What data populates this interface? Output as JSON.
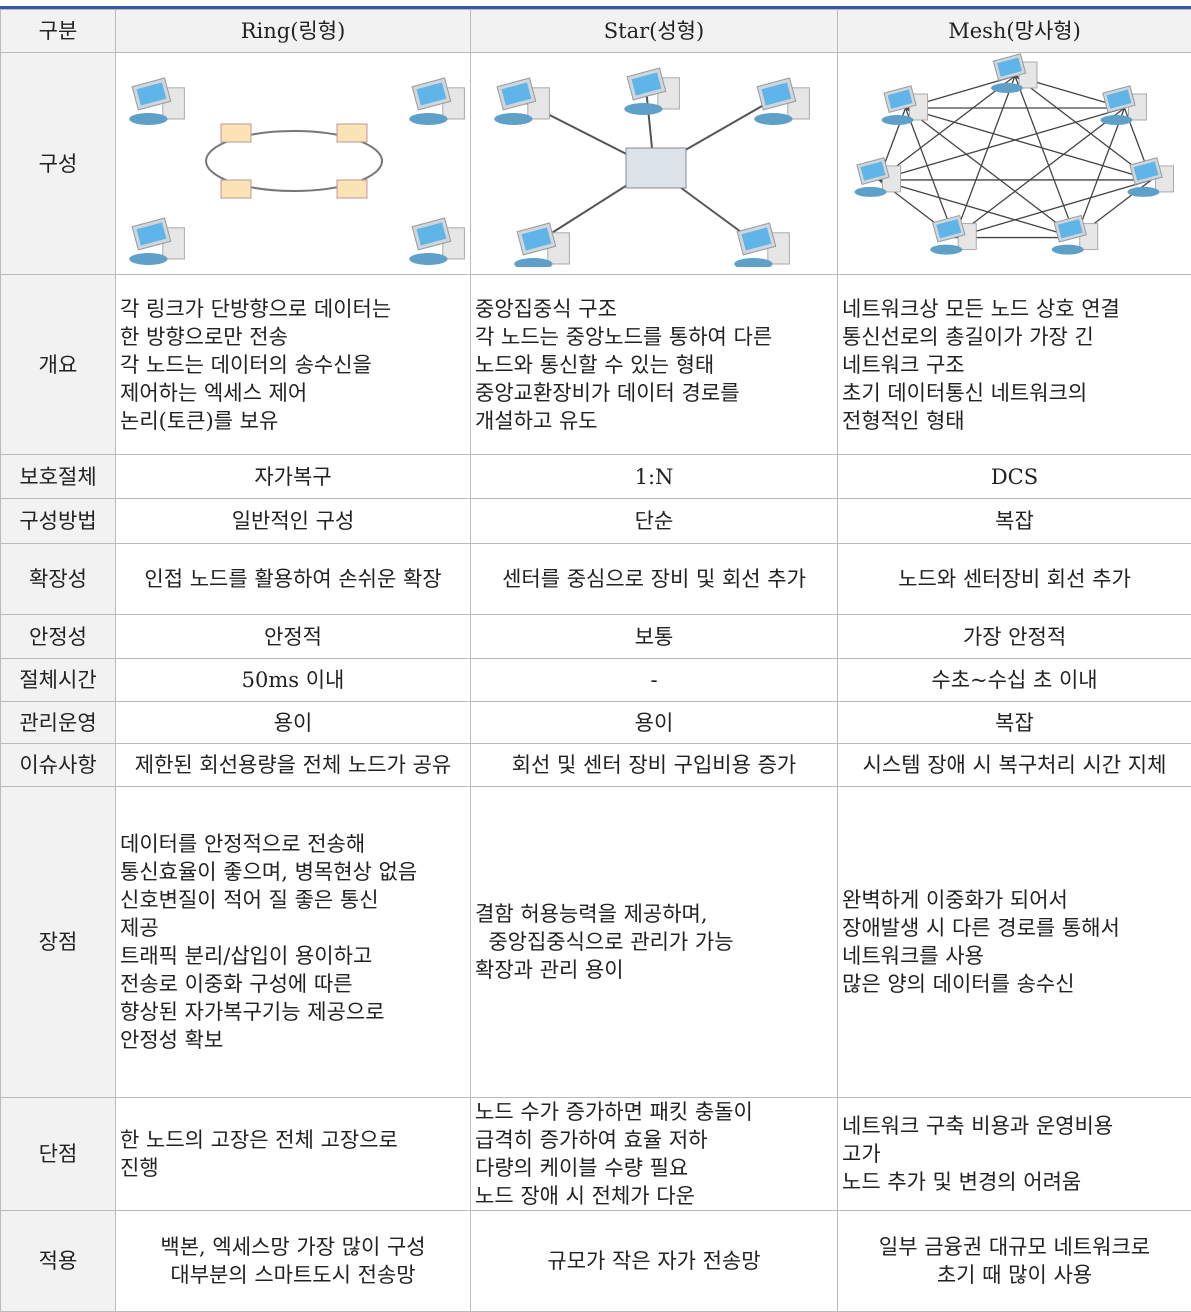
{
  "table": {
    "header": [
      "구분",
      "Ring(링형)",
      "Star(성형)",
      "Mesh(망사형)"
    ],
    "rows": [
      {
        "label": "구성"
      },
      {
        "label": "개요",
        "cells": [
          [
            "각 링크가 단방향으로 데이터는",
            "한 방향으로만 전송",
            "각 노드는 데이터의 송수신을",
            "제어하는 엑세스 제어",
            "논리(토큰)를 보유"
          ],
          [
            "중앙집중식 구조",
            "각 노드는 중앙노드를 통하여 다른",
            "노드와 통신할 수 있는 형태",
            "중앙교환장비가 데이터 경로를",
            "개설하고 유도"
          ],
          [
            "네트워크상 모든 노드 상호 연결",
            "통신선로의 총길이가 가장 긴",
            "네트워크 구조",
            "초기 데이터통신 네트워크의",
            "전형적인 형태"
          ]
        ]
      },
      {
        "label": "보호절체",
        "cells": [
          [
            "자가복구"
          ],
          [
            "1:N"
          ],
          [
            "DCS"
          ]
        ]
      },
      {
        "label": "구성방법",
        "cells": [
          [
            "일반적인 구성"
          ],
          [
            "단순"
          ],
          [
            "복잡"
          ]
        ]
      },
      {
        "label": "확장성",
        "cells": [
          [
            "인접 노드를 활용하여 손쉬운 확장"
          ],
          [
            "센터를 중심으로 장비 및 회선 추가"
          ],
          [
            "노드와 센터장비 회선 추가"
          ]
        ]
      },
      {
        "label": "안정성",
        "cells": [
          [
            "안정적"
          ],
          [
            "보통"
          ],
          [
            "가장 안정적"
          ]
        ]
      },
      {
        "label": "절체시간",
        "cells": [
          [
            "50ms 이내"
          ],
          [
            "-"
          ],
          [
            "수초~수십 초 이내"
          ]
        ]
      },
      {
        "label": "관리운영",
        "cells": [
          [
            "용이"
          ],
          [
            "용이"
          ],
          [
            "복잡"
          ]
        ]
      },
      {
        "label": "이슈사항",
        "cells": [
          [
            "제한된 회선용량을 전체 노드가 공유"
          ],
          [
            "회선 및 센터 장비 구입비용 증가"
          ],
          [
            "시스템 장애 시 복구처리 시간 지체"
          ]
        ]
      },
      {
        "label": "장점",
        "cells": [
          [
            "데이터를 안정적으로 전송해",
            "통신효율이 좋으며, 병목현상 없음",
            "신호변질이 적어 질 좋은 통신",
            "제공",
            "트래픽 분리/삽입이 용이하고",
            "전송로 이중화 구성에 따른",
            "향상된 자가복구기능 제공으로",
            "안정성 확보"
          ],
          [
            "결함 허용능력을 제공하며,",
            "  중앙집중식으로 관리가 가능",
            "확장과 관리 용이"
          ],
          [
            "완벽하게 이중화가 되어서",
            "장애발생 시 다른 경로를 통해서",
            "네트워크를 사용",
            "많은 양의 데이터를 송수신"
          ]
        ]
      },
      {
        "label": "단점",
        "cells": [
          [
            "한 노드의 고장은 전체 고장으로",
            "진행"
          ],
          [
            "노드 수가 증가하면 패킷 충돌이",
            "급격히 증가하여 효율 저하",
            "다량의 케이블 수량 필요",
            "노드 장애 시 전체가 다운"
          ],
          [
            "네트워크 구축 비용과 운영비용",
            "고가",
            "노드 추가 및 변경의 어려움"
          ]
        ]
      },
      {
        "label": "적용",
        "cells": [
          [
            "백본, 엑세스망 가장 많이 구성",
            "대부분의 스마트도시 전송망"
          ],
          [
            "규모가 작은 자가 전송망"
          ],
          [
            "일부 금융권 대규모 네트워크로",
            "초기 때 많이 사용"
          ]
        ]
      }
    ]
  }
}
